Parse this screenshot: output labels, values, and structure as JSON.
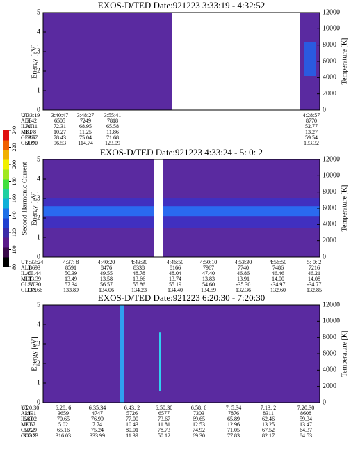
{
  "panels": [
    {
      "title": "EXOS-D/TED  Date:921223  3:33:19 - 4:32:52",
      "ylabel": "Energy [eV]",
      "y2label": "Temperature [K]",
      "ylim": [
        0,
        5
      ],
      "yticks": [
        0,
        1,
        2,
        3,
        4,
        5
      ],
      "y2lim": [
        0,
        12000
      ],
      "y2ticks": [
        0,
        2000,
        4000,
        6000,
        8000,
        10000,
        12000
      ],
      "orbit": {
        "labels": [
          "UT",
          "ALT",
          "ILAT",
          "MLT",
          "GLAT",
          "GLON"
        ],
        "rows": [
          [
            "3:33:19",
            "3:40:47",
            "3:48:27",
            "3:55:41",
            "4:28:57"
          ],
          [
            "5642",
            "6505",
            "7249",
            "7818",
            "8770"
          ],
          [
            "74.11",
            "72.31",
            "68.95",
            "65.58",
            "52.77"
          ],
          [
            "8.78",
            "10.27",
            "11.25",
            "11.86",
            "13.27"
          ],
          [
            "79.67",
            "78.43",
            "75.04",
            "71.68",
            "59.54"
          ],
          [
            "61.90",
            "96.53",
            "114.74",
            "123.09",
            "133.32"
          ]
        ]
      }
    },
    {
      "title": "EXOS-D/TED  Date:921223  4:33:24 - 5: 0: 2",
      "ylabel": "Energy [eV]",
      "y2label": "Temperature [K]",
      "ylim": [
        0,
        5
      ],
      "yticks": [
        0,
        1,
        2,
        3,
        4,
        5
      ],
      "y2lim": [
        0,
        12000
      ],
      "y2ticks": [
        0,
        2000,
        4000,
        6000,
        8000,
        10000,
        12000
      ],
      "orbit": {
        "labels": [
          "UT",
          "ALT",
          "ILAT",
          "MLT",
          "GLAT",
          "GLON"
        ],
        "rows": [
          [
            "4:33:24",
            "4:37: 8",
            "4:40:20",
            "4:43:30",
            "4:46:50",
            "4:50:10",
            "4:53:30",
            "4:56:50",
            "5: 0: 2"
          ],
          [
            "8693",
            "8591",
            "8476",
            "8338",
            "8166",
            "7967",
            "7740",
            "7486",
            "7216"
          ],
          [
            "51.44",
            "50.39",
            "49.55",
            "48.78",
            "48.04",
            "47.40",
            "46.86",
            "46.46",
            "46.21"
          ],
          [
            "13.39",
            "13.49",
            "13.58",
            "13.66",
            "13.74",
            "13.83",
            "13.91",
            "14.00",
            "14.08"
          ],
          [
            "58.30",
            "57.34",
            "56.57",
            "55.86",
            "55.19",
            "54.60",
            "-35.30",
            "-34.97",
            "-34.77"
          ],
          [
            "133.66",
            "133.89",
            "134.06",
            "134.23",
            "134.40",
            "134.59",
            "132.36",
            "132.60",
            "132.85"
          ]
        ]
      }
    },
    {
      "title": "EXOS-D/TED  Date:921223  6:20:30 - 7:20:30",
      "ylabel": "Energy [eV]",
      "y2label": "Temperature [K]",
      "ylim": [
        0,
        5
      ],
      "yticks": [
        0,
        1,
        2,
        3,
        4,
        5
      ],
      "y2lim": [
        0,
        12000
      ],
      "y2ticks": [
        0,
        2000,
        4000,
        6000,
        8000,
        10000,
        12000
      ],
      "orbit": {
        "labels": [
          "UT",
          "ALT",
          "ILAT",
          "MLT",
          "GLAT",
          "GLON"
        ],
        "rows": [
          [
            "6:20:30",
            "6:28: 6",
            "6:35:34",
            "6:43: 2",
            "6:50:30",
            "6:58: 6",
            "7: 5:34",
            "7:13: 2",
            "7:20:30"
          ],
          [
            "2491",
            "3659",
            "4747",
            "5726",
            "6577",
            "7303",
            "7876",
            "8311",
            "8608"
          ],
          [
            "58.02",
            "70.65",
            "76.99",
            "77.00",
            "73.67",
            "69.65",
            "65.89",
            "62.46",
            "59.34"
          ],
          [
            "3.57",
            "5.02",
            "7.74",
            "10.43",
            "11.81",
            "12.53",
            "12.96",
            "13.25",
            "13.47"
          ],
          [
            "50.29",
            "65.16",
            "75.24",
            "80.01",
            "78.73",
            "74.92",
            "71.05",
            "67.52",
            "64.37"
          ],
          [
            "307.23",
            "316.03",
            "333.99",
            "11.39",
            "50.12",
            "69.30",
            "77.83",
            "82.17",
            "84.53"
          ]
        ]
      }
    }
  ],
  "colorbar": {
    "label": "Second Harmonic Current",
    "lim": [
      80,
      240
    ],
    "ticks": [
      80,
      100,
      120,
      140,
      160,
      180,
      200,
      220,
      240
    ],
    "colors": [
      "#000000",
      "#3a0a4a",
      "#5a1a8a",
      "#3a2aa8",
      "#2040d0",
      "#1e70e8",
      "#10b0d8",
      "#20d0a0",
      "#40e040",
      "#a0e820",
      "#f0f000",
      "#f0b000",
      "#f06000",
      "#e01010"
    ]
  }
}
